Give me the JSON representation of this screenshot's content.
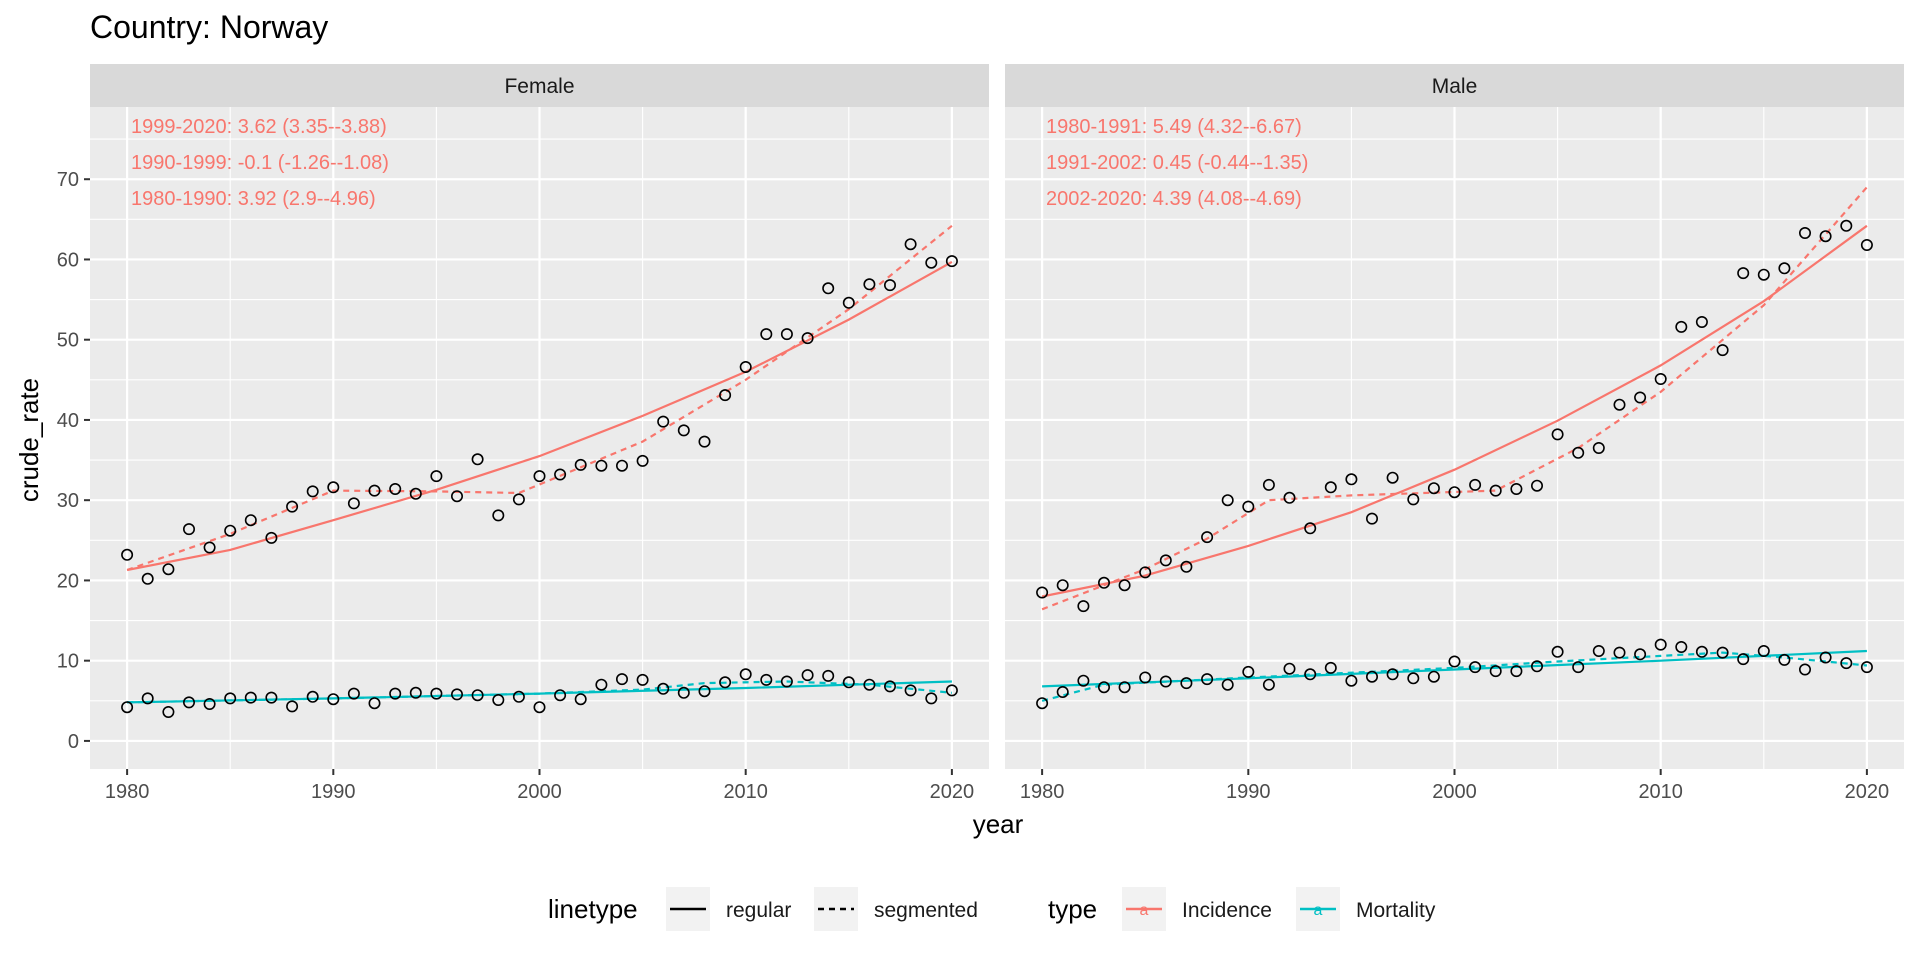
{
  "chart_data": {
    "type": "scatter",
    "title": "Country: Norway",
    "xlabel": "year",
    "ylabel": "crude_rate",
    "xlim": [
      1978.2,
      2021.8
    ],
    "ylim": [
      -3.5,
      79
    ],
    "x_ticks": [
      1980,
      1990,
      2000,
      2010,
      2020
    ],
    "y_ticks": [
      0,
      10,
      20,
      30,
      40,
      50,
      60,
      70
    ],
    "grid": true,
    "legend_position": "bottom",
    "colors": {
      "Incidence": "#F8766D",
      "Mortality": "#00BFC4",
      "panel_bg": "#EBEBEB",
      "strip_bg": "#D9D9D9",
      "grid": "#FFFFFF"
    },
    "legend": {
      "linetype_title": "linetype",
      "linetype_items": [
        "regular",
        "segmented"
      ],
      "type_title": "type",
      "type_items": [
        "Incidence",
        "Mortality"
      ],
      "key_glyph": "a"
    },
    "panels": [
      {
        "strip": "Female",
        "annotations": [
          "1999-2020:  3.62 (3.35--3.88)",
          "1990-1999:  -0.1 (-1.26--1.08)",
          "1980-1990:  3.92 (2.9--4.96)"
        ],
        "points": {
          "Incidence": [
            [
              1980,
              23.2
            ],
            [
              1981,
              20.2
            ],
            [
              1982,
              21.4
            ],
            [
              1983,
              26.4
            ],
            [
              1984,
              24.1
            ],
            [
              1985,
              26.2
            ],
            [
              1986,
              27.5
            ],
            [
              1987,
              25.3
            ],
            [
              1988,
              29.2
            ],
            [
              1989,
              31.1
            ],
            [
              1990,
              31.6
            ],
            [
              1991,
              29.6
            ],
            [
              1992,
              31.2
            ],
            [
              1993,
              31.4
            ],
            [
              1994,
              30.8
            ],
            [
              1995,
              33.0
            ],
            [
              1996,
              30.5
            ],
            [
              1997,
              35.1
            ],
            [
              1998,
              28.1
            ],
            [
              1999,
              30.1
            ],
            [
              2000,
              33.0
            ],
            [
              2001,
              33.2
            ],
            [
              2002,
              34.4
            ],
            [
              2003,
              34.3
            ],
            [
              2004,
              34.3
            ],
            [
              2005,
              34.9
            ],
            [
              2006,
              39.8
            ],
            [
              2007,
              38.7
            ],
            [
              2008,
              37.3
            ],
            [
              2009,
              43.1
            ],
            [
              2010,
              46.6
            ],
            [
              2011,
              50.7
            ],
            [
              2012,
              50.7
            ],
            [
              2013,
              50.2
            ],
            [
              2014,
              56.4
            ],
            [
              2015,
              54.6
            ],
            [
              2016,
              56.9
            ],
            [
              2017,
              56.8
            ],
            [
              2018,
              61.9
            ],
            [
              2019,
              59.6
            ],
            [
              2020,
              59.8
            ]
          ],
          "Mortality": [
            [
              1980,
              4.2
            ],
            [
              1981,
              5.3
            ],
            [
              1982,
              3.6
            ],
            [
              1983,
              4.8
            ],
            [
              1984,
              4.6
            ],
            [
              1985,
              5.3
            ],
            [
              1986,
              5.4
            ],
            [
              1987,
              5.4
            ],
            [
              1988,
              4.3
            ],
            [
              1989,
              5.5
            ],
            [
              1990,
              5.2
            ],
            [
              1991,
              5.9
            ],
            [
              1992,
              4.7
            ],
            [
              1993,
              5.9
            ],
            [
              1994,
              6.0
            ],
            [
              1995,
              5.9
            ],
            [
              1996,
              5.8
            ],
            [
              1997,
              5.7
            ],
            [
              1998,
              5.1
            ],
            [
              1999,
              5.5
            ],
            [
              2000,
              4.2
            ],
            [
              2001,
              5.7
            ],
            [
              2002,
              5.2
            ],
            [
              2003,
              7.0
            ],
            [
              2004,
              7.7
            ],
            [
              2005,
              7.6
            ],
            [
              2006,
              6.5
            ],
            [
              2007,
              6.0
            ],
            [
              2008,
              6.2
            ],
            [
              2009,
              7.3
            ],
            [
              2010,
              8.3
            ],
            [
              2011,
              7.6
            ],
            [
              2012,
              7.4
            ],
            [
              2013,
              8.2
            ],
            [
              2014,
              8.1
            ],
            [
              2015,
              7.3
            ],
            [
              2016,
              7.0
            ],
            [
              2017,
              6.8
            ],
            [
              2018,
              6.3
            ],
            [
              2019,
              5.3
            ],
            [
              2020,
              6.3
            ]
          ]
        },
        "fits": {
          "Incidence": {
            "regular": [
              [
                1980,
                21.3
              ],
              [
                1985,
                23.8
              ],
              [
                1990,
                27.5
              ],
              [
                1995,
                31.3
              ],
              [
                2000,
                35.5
              ],
              [
                2005,
                40.5
              ],
              [
                2010,
                46.0
              ],
              [
                2015,
                52.5
              ],
              [
                2020,
                59.7
              ]
            ],
            "segmented": [
              [
                1980,
                21.3
              ],
              [
                1985,
                25.8
              ],
              [
                1990,
                31.2
              ],
              [
                1995,
                31.1
              ],
              [
                1999,
                30.9
              ],
              [
                2005,
                37.3
              ],
              [
                2010,
                45.0
              ],
              [
                2015,
                53.8
              ],
              [
                2020,
                64.2
              ]
            ]
          },
          "Mortality": {
            "regular": [
              [
                1980,
                4.8
              ],
              [
                1990,
                5.3
              ],
              [
                2000,
                5.9
              ],
              [
                2010,
                6.6
              ],
              [
                2020,
                7.4
              ]
            ],
            "segmented": [
              [
                1980,
                4.8
              ],
              [
                1990,
                5.3
              ],
              [
                2000,
                5.9
              ],
              [
                2005,
                6.4
              ],
              [
                2008,
                7.2
              ],
              [
                2012,
                7.4
              ],
              [
                2016,
                7.0
              ],
              [
                2020,
                6.0
              ]
            ]
          }
        }
      },
      {
        "strip": "Male",
        "annotations": [
          "1980-1991:  5.49 (4.32--6.67)",
          "1991-2002:  0.45 (-0.44--1.35)",
          "2002-2020:  4.39 (4.08--4.69)"
        ],
        "points": {
          "Incidence": [
            [
              1980,
              18.5
            ],
            [
              1981,
              19.4
            ],
            [
              1982,
              16.8
            ],
            [
              1983,
              19.7
            ],
            [
              1984,
              19.4
            ],
            [
              1985,
              21.0
            ],
            [
              1986,
              22.5
            ],
            [
              1987,
              21.7
            ],
            [
              1988,
              25.4
            ],
            [
              1989,
              30.0
            ],
            [
              1990,
              29.2
            ],
            [
              1991,
              31.9
            ],
            [
              1992,
              30.3
            ],
            [
              1993,
              26.5
            ],
            [
              1994,
              31.6
            ],
            [
              1995,
              32.6
            ],
            [
              1996,
              27.7
            ],
            [
              1997,
              32.8
            ],
            [
              1998,
              30.1
            ],
            [
              1999,
              31.5
            ],
            [
              2000,
              31.0
            ],
            [
              2001,
              31.9
            ],
            [
              2002,
              31.2
            ],
            [
              2003,
              31.4
            ],
            [
              2004,
              31.8
            ],
            [
              2005,
              38.2
            ],
            [
              2006,
              35.9
            ],
            [
              2007,
              36.5
            ],
            [
              2008,
              41.9
            ],
            [
              2009,
              42.8
            ],
            [
              2010,
              45.1
            ],
            [
              2011,
              51.6
            ],
            [
              2012,
              52.2
            ],
            [
              2013,
              48.7
            ],
            [
              2014,
              58.3
            ],
            [
              2015,
              58.1
            ],
            [
              2016,
              58.9
            ],
            [
              2017,
              63.3
            ],
            [
              2018,
              62.9
            ],
            [
              2019,
              64.2
            ],
            [
              2020,
              61.8
            ]
          ],
          "Mortality": [
            [
              1980,
              4.7
            ],
            [
              1981,
              6.1
            ],
            [
              1982,
              7.5
            ],
            [
              1983,
              6.7
            ],
            [
              1984,
              6.7
            ],
            [
              1985,
              7.9
            ],
            [
              1986,
              7.4
            ],
            [
              1987,
              7.2
            ],
            [
              1988,
              7.7
            ],
            [
              1989,
              7.0
            ],
            [
              1990,
              8.6
            ],
            [
              1991,
              7.0
            ],
            [
              1992,
              9.0
            ],
            [
              1993,
              8.3
            ],
            [
              1994,
              9.1
            ],
            [
              1995,
              7.5
            ],
            [
              1996,
              8.0
            ],
            [
              1997,
              8.3
            ],
            [
              1998,
              7.8
            ],
            [
              1999,
              8.0
            ],
            [
              2000,
              9.9
            ],
            [
              2001,
              9.2
            ],
            [
              2002,
              8.7
            ],
            [
              2003,
              8.7
            ],
            [
              2004,
              9.3
            ],
            [
              2005,
              11.1
            ],
            [
              2006,
              9.2
            ],
            [
              2007,
              11.2
            ],
            [
              2008,
              11.0
            ],
            [
              2009,
              10.8
            ],
            [
              2010,
              12.0
            ],
            [
              2011,
              11.7
            ],
            [
              2012,
              11.1
            ],
            [
              2013,
              11.0
            ],
            [
              2014,
              10.2
            ],
            [
              2015,
              11.2
            ],
            [
              2016,
              10.1
            ],
            [
              2017,
              8.9
            ],
            [
              2018,
              10.4
            ],
            [
              2019,
              9.7
            ],
            [
              2020,
              9.2
            ]
          ]
        },
        "fits": {
          "Incidence": {
            "regular": [
              [
                1980,
                18.0
              ],
              [
                1985,
                20.6
              ],
              [
                1990,
                24.3
              ],
              [
                1995,
                28.5
              ],
              [
                2000,
                33.8
              ],
              [
                2005,
                39.9
              ],
              [
                2010,
                46.8
              ],
              [
                2015,
                54.8
              ],
              [
                2020,
                64.2
              ]
            ],
            "segmented": [
              [
                1980,
                16.4
              ],
              [
                1985,
                21.4
              ],
              [
                1988,
                25.2
              ],
              [
                1991,
                30.0
              ],
              [
                1995,
                30.6
              ],
              [
                2002,
                31.2
              ],
              [
                2006,
                36.5
              ],
              [
                2010,
                43.5
              ],
              [
                2015,
                54.3
              ],
              [
                2020,
                69.0
              ]
            ]
          },
          "Mortality": {
            "regular": [
              [
                1980,
                6.8
              ],
              [
                1990,
                7.8
              ],
              [
                2000,
                8.9
              ],
              [
                2010,
                10.0
              ],
              [
                2020,
                11.2
              ]
            ],
            "segmented": [
              [
                1980,
                5.0
              ],
              [
                1983,
                7.0
              ],
              [
                1990,
                7.9
              ],
              [
                2000,
                9.1
              ],
              [
                2005,
                9.9
              ],
              [
                2010,
                10.6
              ],
              [
                2013,
                11.0
              ],
              [
                2016,
                10.4
              ],
              [
                2020,
                9.4
              ]
            ]
          }
        }
      }
    ]
  }
}
